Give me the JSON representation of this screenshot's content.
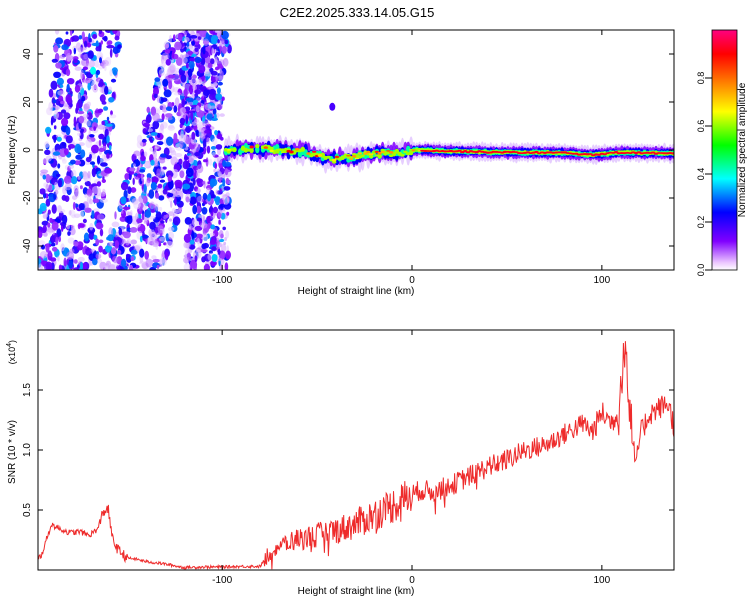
{
  "title": "C2E2.2025.333.14.05.G15",
  "colors": {
    "snr_line": "#ee2b2b",
    "axis": "#000000",
    "background": "#ffffff"
  },
  "chart_data": [
    {
      "type": "heatmap",
      "xlabel": "Height of straight line (km)",
      "ylabel": "Frequency (Hz)",
      "xlim": [
        -197,
        138
      ],
      "ylim": [
        -50,
        50
      ],
      "x_ticks": [
        -100,
        0,
        100
      ],
      "x_tick_labels": [
        "-100",
        "0",
        "100"
      ],
      "y_ticks": [
        -40,
        -20,
        0,
        20,
        40
      ],
      "y_tick_labels": [
        "-40",
        "-20",
        "0",
        "20",
        "40"
      ],
      "colorbar": {
        "label": "Normalized spectral amplitude",
        "range": [
          0,
          1
        ],
        "ticks": [
          0.0,
          0.2,
          0.4,
          0.6,
          0.8
        ],
        "tick_labels": [
          "0.0",
          "0.2",
          "0.4",
          "0.6",
          "0.8"
        ],
        "colormap": [
          "#ffffff",
          "#8000ff",
          "#0000ff",
          "#00ffff",
          "#00ff00",
          "#ffff00",
          "#ff8000",
          "#ff0000",
          "#ff0080"
        ]
      },
      "features": {
        "noise_bands_x_start": -197,
        "noise_bands_x_end": -96,
        "ridge_start_km": -98,
        "ridge_frequency_hz": [
          {
            "x": -98,
            "f": 0.0
          },
          {
            "x": -85,
            "f": 0.5
          },
          {
            "x": -70,
            "f": 0.3
          },
          {
            "x": -55,
            "f": -1.0
          },
          {
            "x": -42,
            "f": -4.0
          },
          {
            "x": -32,
            "f": -3.0
          },
          {
            "x": -20,
            "f": -1.5
          },
          {
            "x": -5,
            "f": -1.0
          },
          {
            "x": 0,
            "f": 0.0
          },
          {
            "x": 20,
            "f": -0.5
          },
          {
            "x": 50,
            "f": -1.0
          },
          {
            "x": 80,
            "f": -1.2
          },
          {
            "x": 95,
            "f": -2.0
          },
          {
            "x": 110,
            "f": -1.0
          },
          {
            "x": 138,
            "f": -1.5
          }
        ]
      }
    },
    {
      "type": "line",
      "name": "SNR",
      "xlabel": "Height of straight line (km)",
      "ylabel": "SNR (10 * v/v)",
      "y_multiplier_label": "(x10",
      "y_multiplier_exponent": "4",
      "y_multiplier_close": ")",
      "xlim": [
        -197,
        138
      ],
      "ylim": [
        0,
        20000
      ],
      "x_ticks": [
        -100,
        0,
        100
      ],
      "x_tick_labels": [
        "-100",
        "0",
        "100"
      ],
      "y_ticks": [
        5000,
        10000,
        15000
      ],
      "y_tick_labels": [
        "0.5",
        "1.0",
        "1.5"
      ],
      "series_envelope": {
        "x": [
          -197,
          -195,
          -190,
          -185,
          -180,
          -175,
          -170,
          -165,
          -163,
          -160,
          -158,
          -155,
          -150,
          -145,
          -140,
          -130,
          -120,
          -110,
          -100,
          -90,
          -80,
          -77,
          -75,
          -70,
          -60,
          -50,
          -40,
          -30,
          -20,
          -10,
          0,
          5,
          10,
          20,
          30,
          40,
          50,
          60,
          70,
          80,
          90,
          95,
          100,
          105,
          108,
          110,
          112,
          115,
          118,
          120,
          125,
          130,
          135,
          138
        ],
        "y": [
          900,
          1300,
          3800,
          3400,
          3100,
          3200,
          2900,
          3500,
          4800,
          5100,
          2700,
          1700,
          1000,
          900,
          700,
          500,
          200,
          250,
          250,
          300,
          300,
          1000,
          1500,
          2000,
          2600,
          2900,
          3300,
          3800,
          4600,
          5400,
          6300,
          6700,
          6500,
          7000,
          7800,
          8600,
          9200,
          10000,
          10400,
          11300,
          12200,
          11500,
          13100,
          12300,
          12900,
          13200,
          18000,
          12300,
          8500,
          11200,
          13000,
          13500,
          13900,
          12000
        ]
      }
    }
  ]
}
